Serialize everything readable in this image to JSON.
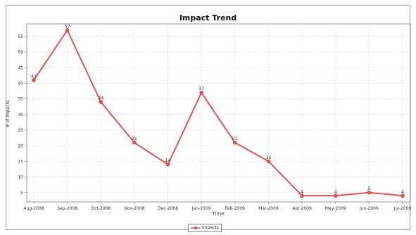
{
  "chart_data": {
    "type": "line",
    "title": "Impact Trend",
    "xlabel": "Time",
    "ylabel": "# of Impacts",
    "categories": [
      "Aug-2008",
      "Sep-2008",
      "Oct-2008",
      "Nov-2008",
      "Dec-2008",
      "Jan-2009",
      "Feb-2009",
      "Mar-2009",
      "Apr-2009",
      "May-2009",
      "Jun-2009",
      "Jul-2009"
    ],
    "series": [
      {
        "name": "Impacts",
        "values": [
          41,
          57,
          34,
          21,
          14,
          37,
          21,
          15,
          4,
          4,
          5,
          4
        ],
        "color": "#e05555"
      }
    ],
    "yticks": [
      5,
      10,
      15,
      20,
      25,
      30,
      35,
      40,
      45,
      50,
      55
    ],
    "ylim": [
      2,
      59
    ],
    "grid": true,
    "legend": "bottom-center"
  }
}
